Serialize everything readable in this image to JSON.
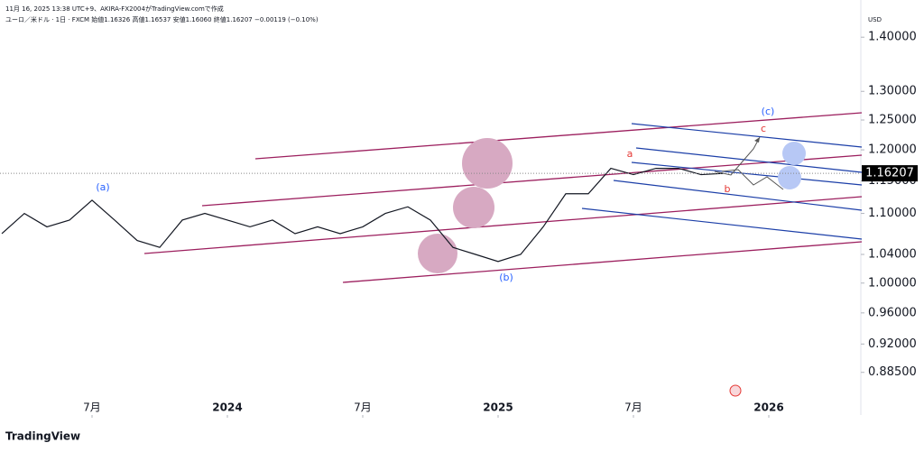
{
  "header": {
    "meta": "11月 16, 2025 13:38 UTC+9、AKIRA-FX2004がTradingView.comで作成",
    "ohlc": "ユーロ／米ドル · 1日 · FXCM  始値1.16326  高値1.16537  安値1.16060  終値1.16207  −0.00119 (−0.10%)"
  },
  "annotations": [
    "(a)",
    "(b)",
    "(c)",
    "a",
    "b",
    "c"
  ],
  "footer": {
    "logo": "TradingView"
  },
  "chart_data": {
    "type": "line",
    "y_axis_unit": "USD",
    "log_scale": true,
    "color": "#131722",
    "x": [
      "2023-03",
      "2023-04",
      "2023-05",
      "2023-06",
      "2023-07",
      "2023-08",
      "2023-09",
      "2023-10",
      "2023-11",
      "2023-12",
      "2024-01",
      "2024-02",
      "2024-03",
      "2024-04",
      "2024-05",
      "2024-06",
      "2024-07",
      "2024-08",
      "2024-09",
      "2024-10",
      "2024-11",
      "2024-12",
      "2025-01",
      "2025-02",
      "2025-03",
      "2025-04",
      "2025-05",
      "2025-06",
      "2025-07",
      "2025-08",
      "2025-09",
      "2025-10",
      "2025-11"
    ],
    "series": [
      {
        "name": "EUR/USD",
        "color": "#131722",
        "values": [
          1.07,
          1.1,
          1.08,
          1.09,
          1.12,
          1.09,
          1.06,
          1.05,
          1.09,
          1.1,
          1.09,
          1.08,
          1.09,
          1.07,
          1.08,
          1.07,
          1.08,
          1.1,
          1.11,
          1.09,
          1.05,
          1.04,
          1.03,
          1.04,
          1.08,
          1.13,
          1.13,
          1.17,
          1.16,
          1.17,
          1.17,
          1.16,
          1.16207
        ]
      }
    ],
    "last_price": 1.16207,
    "xlim": [
      "2023-03",
      "2026-05"
    ],
    "xticks": [
      {
        "value": "2023-07",
        "label": "7月"
      },
      {
        "value": "2024-01",
        "label": "2024"
      },
      {
        "value": "2024-07",
        "label": "7月"
      },
      {
        "value": "2025-01",
        "label": "2025"
      },
      {
        "value": "2025-07",
        "label": "7月"
      },
      {
        "value": "2026-01",
        "label": "2026"
      }
    ],
    "ylim": [
      0.84,
      1.455
    ],
    "yticks": [
      {
        "value": 1.4,
        "label": "1.40000"
      },
      {
        "value": 1.3,
        "label": "1.30000"
      },
      {
        "value": 1.25,
        "label": "1.25000"
      },
      {
        "value": 1.2,
        "label": "1.20000"
      },
      {
        "value": 1.15,
        "label": "1.15000"
      },
      {
        "value": 1.1,
        "label": "1.10000"
      },
      {
        "value": 1.04,
        "label": "1.04000"
      },
      {
        "value": 1.0,
        "label": "1.00000"
      },
      {
        "value": 0.96,
        "label": "0.96000"
      },
      {
        "value": 0.92,
        "label": "0.92000"
      },
      {
        "value": 0.885,
        "label": "0.88500"
      }
    ]
  }
}
